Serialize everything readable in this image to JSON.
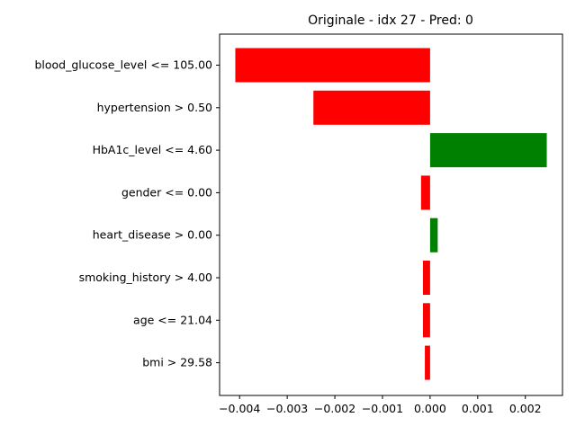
{
  "chart_data": {
    "type": "bar",
    "orientation": "horizontal",
    "title": "Originale - idx 27 - Pred: 0",
    "xlabel": "",
    "ylabel": "",
    "categories": [
      "blood_glucose_level <= 105.00",
      "hypertension > 0.50",
      "HbA1c_level <= 4.60",
      "gender <= 0.00",
      "heart_disease > 0.00",
      "smoking_history > 4.00",
      "age <= 21.04",
      "bmi > 29.58"
    ],
    "values": [
      -0.00409,
      -0.00245,
      0.00245,
      -0.00019,
      0.00016,
      -0.00015,
      -0.00015,
      -0.00011
    ],
    "xlim": [
      -0.00442,
      0.00278
    ],
    "xticks": [
      -0.004,
      -0.003,
      -0.002,
      -0.001,
      0.0,
      0.001,
      0.002
    ],
    "xtick_labels": [
      "−0.004",
      "−0.003",
      "−0.002",
      "−0.001",
      "0.000",
      "0.001",
      "0.002"
    ],
    "grid": false,
    "colors": {
      "positive": "#008000",
      "negative": "#ff0000",
      "axis": "#000000"
    }
  }
}
